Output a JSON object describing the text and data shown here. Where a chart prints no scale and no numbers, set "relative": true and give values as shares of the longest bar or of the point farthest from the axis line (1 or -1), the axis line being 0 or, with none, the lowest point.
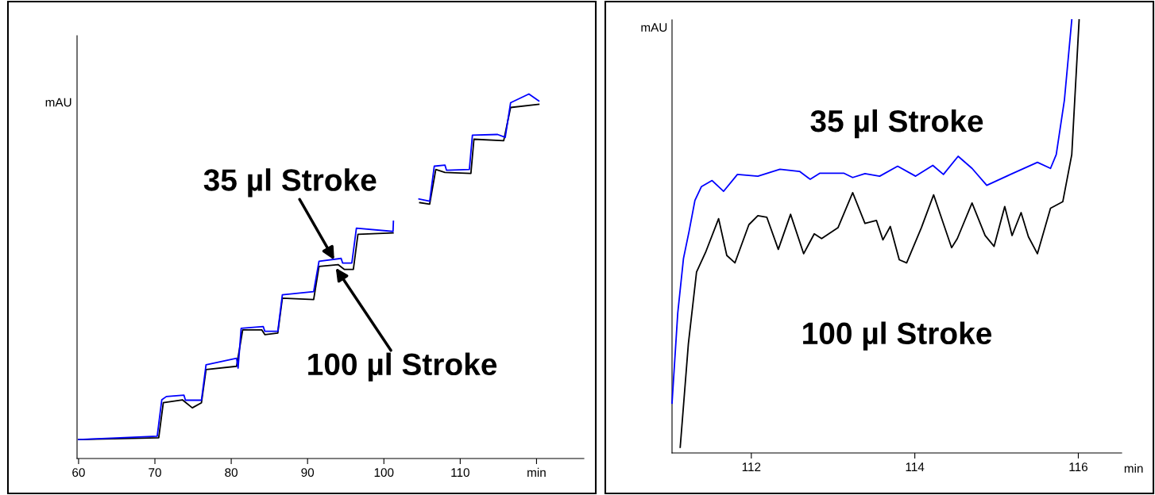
{
  "chart_data": [
    {
      "type": "line",
      "relative": true,
      "ylabel": "mAU",
      "xlim": [
        59.8,
        126.2
      ],
      "xticks": [
        60,
        70,
        80,
        90,
        100,
        110,
        {
          "value": 120,
          "label": "min"
        }
      ],
      "tick_labels": "x",
      "grid": false,
      "annotations": [
        {
          "text": "35 µl Stroke",
          "x": 93.5,
          "y": 0.545
        },
        {
          "text": "100 µl Stroke",
          "x": 93.7,
          "y": 0.523
        }
      ],
      "series": [
        {
          "color": "#0000ff",
          "x": [
            60,
            70.3,
            70.9,
            71.5,
            73.8,
            74.0,
            76.1,
            76.7,
            80.7,
            80.9,
            81.3,
            84.2,
            84.4,
            86.1,
            86.7,
            90.8,
            91.5,
            94.4,
            94.6,
            95.8,
            96.4,
            101.2,
            101.25,
            103,
            104.6,
            106.0,
            106.6,
            108.0,
            108.2,
            111.2,
            111.6,
            114.9,
            115.9,
            116.6,
            119.0,
            120.3
          ],
          "values": [
            0.052,
            0.061,
            0.161,
            0.17,
            0.174,
            0.16,
            0.16,
            0.257,
            0.275,
            0.248,
            0.357,
            0.362,
            0.349,
            0.349,
            0.449,
            0.458,
            0.541,
            0.549,
            0.536,
            0.536,
            0.632,
            0.623,
            0.651,
            null,
            0.712,
            0.706,
            0.802,
            0.805,
            0.791,
            0.793,
            0.887,
            0.889,
            0.881,
            0.976,
            1.0,
            0.981
          ]
        },
        {
          "color": "#000000",
          "x": [
            60,
            70.5,
            71.1,
            73.6,
            74.9,
            76.1,
            76.7,
            80.7,
            81.5,
            84.0,
            84.4,
            86.1,
            86.7,
            90.8,
            91.5,
            94.0,
            94.8,
            96.0,
            96.6,
            101.2,
            103,
            104.7,
            106.0,
            106.8,
            108.0,
            111.4,
            111.8,
            115.7,
            116.6,
            120.3
          ],
          "values": [
            0.052,
            0.057,
            0.153,
            0.161,
            0.139,
            0.153,
            0.244,
            0.253,
            0.353,
            0.353,
            0.34,
            0.344,
            0.44,
            0.436,
            0.527,
            0.532,
            0.519,
            0.519,
            0.615,
            0.619,
            null,
            0.702,
            0.698,
            0.793,
            0.785,
            0.782,
            0.876,
            0.872,
            0.963,
            0.972
          ]
        }
      ]
    },
    {
      "type": "line",
      "relative": true,
      "ylabel": "mAU",
      "xlabel": "min",
      "xlim": [
        111.03,
        116.53
      ],
      "xticks": [
        112,
        114,
        116
      ],
      "tick_labels": "x",
      "grid": false,
      "annotations": [
        "35 µl Stroke",
        "100 µl Stroke"
      ],
      "series": [
        {
          "color": "#0000ff",
          "x": [
            111.03,
            111.1,
            111.17,
            111.24,
            111.31,
            111.39,
            111.52,
            111.66,
            111.83,
            112.08,
            112.35,
            112.59,
            112.72,
            112.84,
            113.13,
            113.24,
            113.39,
            113.57,
            113.79,
            114.01,
            114.22,
            114.35,
            114.53,
            114.7,
            114.88,
            115.17,
            115.5,
            115.66,
            115.73,
            115.83,
            115.92
          ],
          "values": [
            0.115,
            0.323,
            0.449,
            0.513,
            0.583,
            0.615,
            0.629,
            0.604,
            0.643,
            0.639,
            0.655,
            0.65,
            0.632,
            0.646,
            0.646,
            0.636,
            0.645,
            0.639,
            0.662,
            0.639,
            0.664,
            0.643,
            0.685,
            0.657,
            0.618,
            0.643,
            0.671,
            0.657,
            0.689,
            0.815,
            1.0
          ]
        },
        {
          "color": "#000000",
          "x": [
            111.13,
            111.23,
            111.33,
            111.44,
            111.6,
            111.7,
            111.8,
            111.97,
            112.08,
            112.19,
            112.33,
            112.48,
            112.64,
            112.77,
            112.86,
            113.06,
            113.24,
            113.39,
            113.53,
            113.61,
            113.7,
            113.81,
            113.9,
            114.08,
            114.23,
            114.45,
            114.52,
            114.7,
            114.86,
            114.97,
            115.1,
            115.19,
            115.3,
            115.39,
            115.5,
            115.66,
            115.81,
            115.92,
            116.01
          ],
          "values": [
            0.013,
            0.252,
            0.418,
            0.463,
            0.541,
            0.456,
            0.439,
            0.527,
            0.548,
            0.544,
            0.47,
            0.551,
            0.46,
            0.506,
            0.495,
            0.52,
            0.601,
            0.53,
            0.537,
            0.492,
            0.523,
            0.446,
            0.439,
            0.52,
            0.596,
            0.474,
            0.495,
            0.577,
            0.502,
            0.477,
            0.569,
            0.502,
            0.555,
            0.499,
            0.46,
            0.565,
            0.58,
            0.689,
            1.0
          ]
        }
      ]
    }
  ]
}
